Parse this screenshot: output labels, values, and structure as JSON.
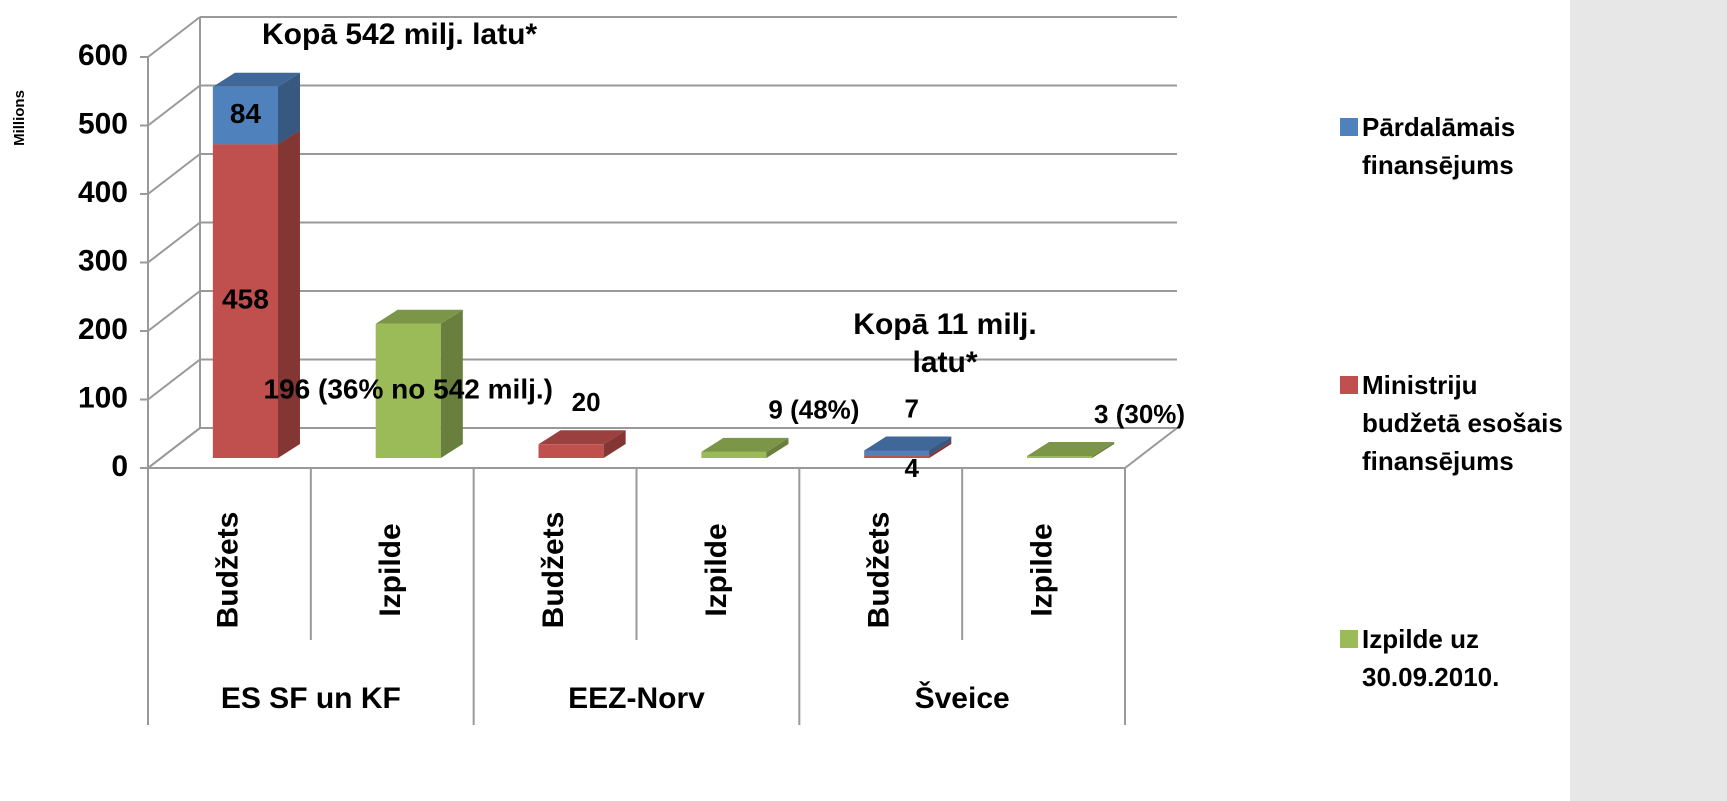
{
  "chart_data": {
    "type": "bar3d_stacked",
    "y_axis_label": "Millions",
    "categories": [
      "Budžets",
      "Izpilde",
      "Budžets",
      "Izpilde",
      "Budžets",
      "Izpilde"
    ],
    "groups": [
      "ES SF un KF",
      "EEZ-Norv",
      "Šveice"
    ],
    "series": [
      {
        "name": "Pārdalāmais finansējums",
        "color": "#4f81bd",
        "values": [
          84,
          null,
          null,
          null,
          7,
          null
        ]
      },
      {
        "name": "Ministriju budžetā esošais finansējums",
        "color": "#c0504d",
        "values": [
          458,
          null,
          20,
          null,
          4,
          null
        ]
      },
      {
        "name": "Izpilde uz 30.09.2010.",
        "color": "#9bbb59",
        "values": [
          null,
          196,
          null,
          9,
          null,
          3
        ],
        "value_labels": [
          null,
          "196 (36% no 542 milj.)",
          null,
          "9 (48%)",
          null,
          "3 (30%)"
        ]
      }
    ],
    "annotations": [
      "Kopā 542 milj. latu*",
      "Kopā 11 milj. latu*"
    ],
    "ylim": [
      0,
      600
    ],
    "yticks": [
      0,
      100,
      200,
      300,
      400,
      500,
      600
    ],
    "grid": true,
    "legend": "right"
  }
}
